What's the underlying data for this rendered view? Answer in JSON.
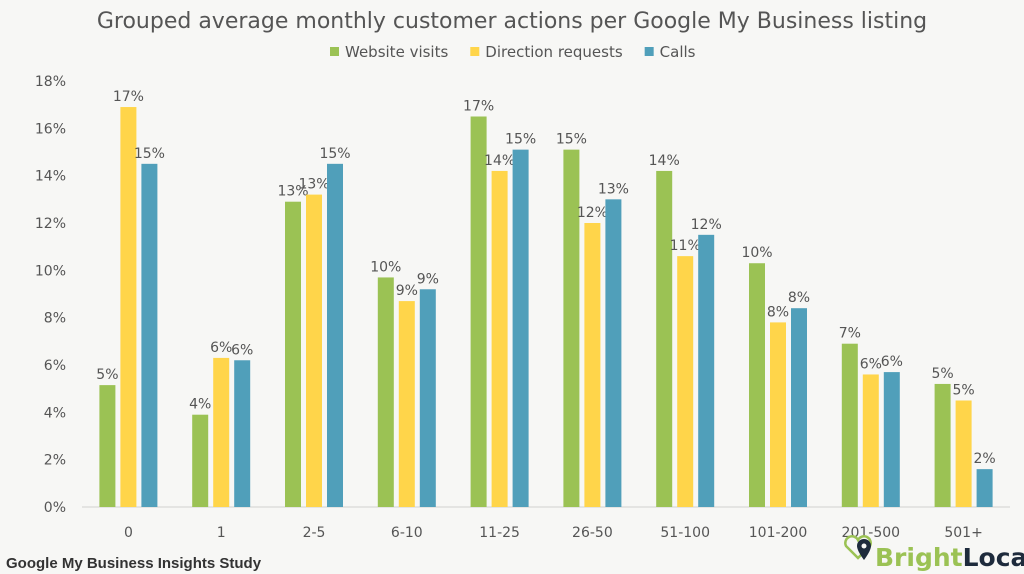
{
  "chart_data": {
    "type": "bar",
    "title": "Grouped average monthly customer actions per Google My Business listing",
    "xlabel": "",
    "ylabel": "",
    "ylim": [
      0,
      18
    ],
    "y_tick_step": 2,
    "y_tick_format": "%",
    "grid": false,
    "legend_position": "top",
    "categories": [
      "0",
      "1",
      "2-5",
      "6-10",
      "11-25",
      "26-50",
      "51-100",
      "101-200",
      "201-500",
      "501+"
    ],
    "series": [
      {
        "name": "Website visits",
        "color": "#9bc254",
        "values": [
          5.15,
          3.9,
          12.9,
          9.7,
          16.5,
          15.1,
          14.2,
          10.3,
          6.9,
          5.2
        ],
        "labels": [
          "5%",
          "4%",
          "13%",
          "10%",
          "17%",
          "15%",
          "14%",
          "10%",
          "7%",
          "5%"
        ]
      },
      {
        "name": "Direction requests",
        "color": "#ffd54a",
        "values": [
          16.9,
          6.3,
          13.2,
          8.7,
          14.2,
          12.0,
          10.6,
          7.8,
          5.6,
          4.5
        ],
        "labels": [
          "17%",
          "6%",
          "13%",
          "9%",
          "14%",
          "12%",
          "11%",
          "8%",
          "6%",
          "5%"
        ]
      },
      {
        "name": "Calls",
        "color": "#509fba",
        "values": [
          14.5,
          6.2,
          14.5,
          9.2,
          15.1,
          13.0,
          11.5,
          8.4,
          5.7,
          1.6
        ],
        "labels": [
          "15%",
          "6%",
          "15%",
          "9%",
          "15%",
          "13%",
          "12%",
          "8%",
          "6%",
          "2%"
        ]
      }
    ]
  },
  "footer": {
    "source": "Google My Business Insights Study",
    "logo_text_part1": "Bright",
    "logo_text_part2": "Local"
  }
}
